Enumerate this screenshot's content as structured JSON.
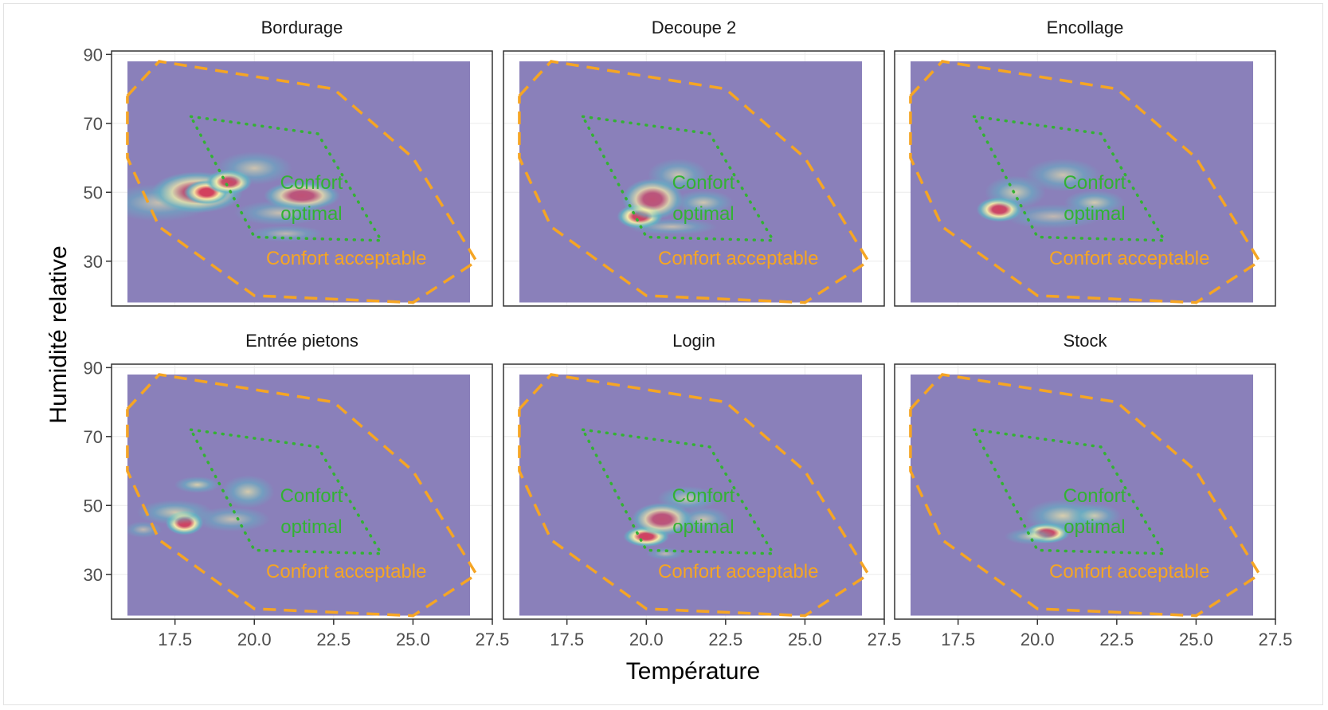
{
  "figure": {
    "xlabel": "Température",
    "ylabel": "Humidité relative"
  },
  "annotations": {
    "optimal_line1": "Confort",
    "optimal_line2": "optimal",
    "acceptable": "Confort acceptable"
  },
  "colors": {
    "background": "#8a80ba",
    "acceptable_zone": "#f5a524",
    "optimal_zone": "#33b233",
    "density_low": "#62b3c4",
    "density_mid": "#fdf3a8",
    "density_high": "#d53e5a"
  },
  "chart_data": {
    "type": "heatmap",
    "subtype": "2d-density facets",
    "xlabel": "Température",
    "ylabel": "Humidité relative",
    "xlim": [
      15.5,
      27.5
    ],
    "ylim": [
      17,
      91
    ],
    "x_ticks": [
      "17.5",
      "20.0",
      "22.5",
      "25.0",
      "27.5"
    ],
    "y_ticks": [
      "30",
      "50",
      "70",
      "90"
    ],
    "acceptable_zone": [
      [
        16.0,
        78
      ],
      [
        17.0,
        88
      ],
      [
        22.5,
        80
      ],
      [
        25.0,
        60
      ],
      [
        27.0,
        30
      ],
      [
        25.0,
        18
      ],
      [
        20.0,
        20
      ],
      [
        17.0,
        40
      ],
      [
        16.0,
        60
      ],
      [
        16.0,
        78
      ]
    ],
    "optimal_zone": [
      [
        18.0,
        72
      ],
      [
        22.0,
        67
      ],
      [
        24.0,
        36
      ],
      [
        20.0,
        37
      ],
      [
        18.0,
        72
      ]
    ],
    "panels": [
      {
        "name": "Bordurage",
        "blobs": [
          {
            "x": 17.0,
            "y": 47,
            "sx": 1.4,
            "sy": 4.5,
            "level": 0.3
          },
          {
            "x": 18.2,
            "y": 50,
            "sx": 1.2,
            "sy": 5,
            "level": 0.6
          },
          {
            "x": 18.5,
            "y": 50,
            "sx": 0.6,
            "sy": 3,
            "level": 0.9
          },
          {
            "x": 19.2,
            "y": 53,
            "sx": 0.6,
            "sy": 3,
            "level": 0.85
          },
          {
            "x": 20.0,
            "y": 57,
            "sx": 1.0,
            "sy": 4,
            "level": 0.35
          },
          {
            "x": 21.5,
            "y": 49,
            "sx": 1.0,
            "sy": 3.5,
            "level": 0.55
          },
          {
            "x": 20.8,
            "y": 44,
            "sx": 1.2,
            "sy": 3,
            "level": 0.3
          },
          {
            "x": 21.0,
            "y": 38,
            "sx": 1.0,
            "sy": 2,
            "level": 0.2
          }
        ]
      },
      {
        "name": "Decoupe 2",
        "blobs": [
          {
            "x": 19.8,
            "y": 43,
            "sx": 0.6,
            "sy": 3,
            "level": 0.95
          },
          {
            "x": 20.2,
            "y": 48,
            "sx": 0.8,
            "sy": 5,
            "level": 0.55
          },
          {
            "x": 21.0,
            "y": 55,
            "sx": 0.8,
            "sy": 4,
            "level": 0.35
          },
          {
            "x": 21.8,
            "y": 47,
            "sx": 0.8,
            "sy": 3,
            "level": 0.4
          },
          {
            "x": 20.8,
            "y": 40,
            "sx": 1.2,
            "sy": 2,
            "level": 0.25
          }
        ]
      },
      {
        "name": "Encollage",
        "blobs": [
          {
            "x": 18.8,
            "y": 45,
            "sx": 0.6,
            "sy": 3,
            "level": 0.9
          },
          {
            "x": 19.3,
            "y": 50,
            "sx": 0.8,
            "sy": 4,
            "level": 0.45
          },
          {
            "x": 20.8,
            "y": 55,
            "sx": 1.0,
            "sy": 4,
            "level": 0.35
          },
          {
            "x": 21.8,
            "y": 47,
            "sx": 0.8,
            "sy": 3,
            "level": 0.45
          },
          {
            "x": 20.5,
            "y": 43,
            "sx": 1.3,
            "sy": 3,
            "level": 0.2
          }
        ]
      },
      {
        "name": "Entrée pietons",
        "blobs": [
          {
            "x": 17.8,
            "y": 45,
            "sx": 0.5,
            "sy": 3,
            "level": 0.95
          },
          {
            "x": 17.5,
            "y": 48,
            "sx": 1.0,
            "sy": 3,
            "level": 0.4
          },
          {
            "x": 18.2,
            "y": 56,
            "sx": 0.6,
            "sy": 2,
            "level": 0.5
          },
          {
            "x": 19.8,
            "y": 54,
            "sx": 0.7,
            "sy": 4,
            "level": 0.45
          },
          {
            "x": 19.3,
            "y": 46,
            "sx": 1.0,
            "sy": 3,
            "level": 0.3
          },
          {
            "x": 16.5,
            "y": 43,
            "sx": 0.5,
            "sy": 2,
            "level": 0.2
          }
        ]
      },
      {
        "name": "Login",
        "blobs": [
          {
            "x": 20.0,
            "y": 41,
            "sx": 0.6,
            "sy": 2.5,
            "level": 0.95
          },
          {
            "x": 20.5,
            "y": 46,
            "sx": 0.8,
            "sy": 4,
            "level": 0.55
          },
          {
            "x": 21.3,
            "y": 52,
            "sx": 0.8,
            "sy": 3,
            "level": 0.4
          },
          {
            "x": 21.8,
            "y": 46,
            "sx": 0.7,
            "sy": 3,
            "level": 0.35
          },
          {
            "x": 20.6,
            "y": 36,
            "sx": 0.5,
            "sy": 1.5,
            "level": 0.2
          }
        ]
      },
      {
        "name": "Stock",
        "blobs": [
          {
            "x": 20.3,
            "y": 42,
            "sx": 0.6,
            "sy": 2.5,
            "level": 0.95
          },
          {
            "x": 20.8,
            "y": 47,
            "sx": 1.0,
            "sy": 4,
            "level": 0.5
          },
          {
            "x": 21.8,
            "y": 47,
            "sx": 0.7,
            "sy": 3,
            "level": 0.4
          },
          {
            "x": 19.8,
            "y": 41,
            "sx": 0.7,
            "sy": 2,
            "level": 0.35
          }
        ]
      }
    ]
  }
}
